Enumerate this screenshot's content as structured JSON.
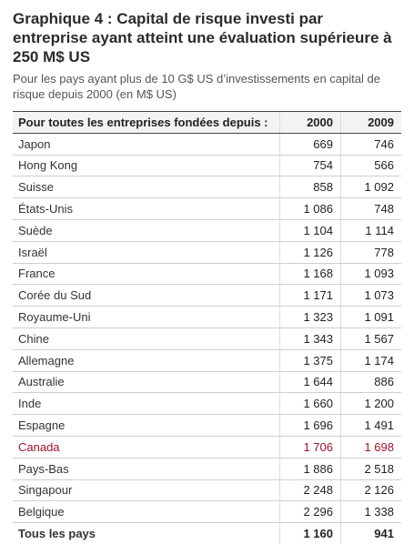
{
  "chart_data": {
    "type": "table",
    "title": "Graphique 4 : Capital de risque investi par entreprise ayant atteint une évaluation supérieure à 250 M$ US",
    "subtitle": "Pour les pays ayant plus de 10 G$ US d’investissements en capital de risque depuis 2000 (en M$ US)",
    "header_label": "Pour toutes les entreprises fondées depuis :",
    "columns": [
      "2000",
      "2009"
    ],
    "rows": [
      {
        "label": "Japon",
        "v2000": "669",
        "v2009": "746"
      },
      {
        "label": "Hong Kong",
        "v2000": "754",
        "v2009": "566"
      },
      {
        "label": "Suisse",
        "v2000": "858",
        "v2009": "1 092"
      },
      {
        "label": "États-Unis",
        "v2000": "1 086",
        "v2009": "748"
      },
      {
        "label": "Suède",
        "v2000": "1 104",
        "v2009": "1 114"
      },
      {
        "label": "Israël",
        "v2000": "1 126",
        "v2009": "778"
      },
      {
        "label": "France",
        "v2000": "1 168",
        "v2009": "1 093"
      },
      {
        "label": "Corée du Sud",
        "v2000": "1 171",
        "v2009": "1 073"
      },
      {
        "label": "Royaume-Uni",
        "v2000": "1 323",
        "v2009": "1 091"
      },
      {
        "label": "Chine",
        "v2000": "1 343",
        "v2009": "1 567"
      },
      {
        "label": "Allemagne",
        "v2000": "1 375",
        "v2009": "1 174"
      },
      {
        "label": "Australie",
        "v2000": "1 644",
        "v2009": "886"
      },
      {
        "label": "Inde",
        "v2000": "1 660",
        "v2009": "1 200"
      },
      {
        "label": "Espagne",
        "v2000": "1 696",
        "v2009": "1 491"
      },
      {
        "label": "Canada",
        "v2000": "1 706",
        "v2009": "1 698",
        "highlight": true
      },
      {
        "label": "Pays-Bas",
        "v2000": "1 886",
        "v2009": "2 518"
      },
      {
        "label": "Singapour",
        "v2000": "2 248",
        "v2009": "2 126"
      },
      {
        "label": "Belgique",
        "v2000": "2 296",
        "v2009": "1 338"
      }
    ],
    "total": {
      "label": "Tous les pays",
      "v2000": "1 160",
      "v2009": "941"
    },
    "highlight_color": "#a3122b"
  }
}
